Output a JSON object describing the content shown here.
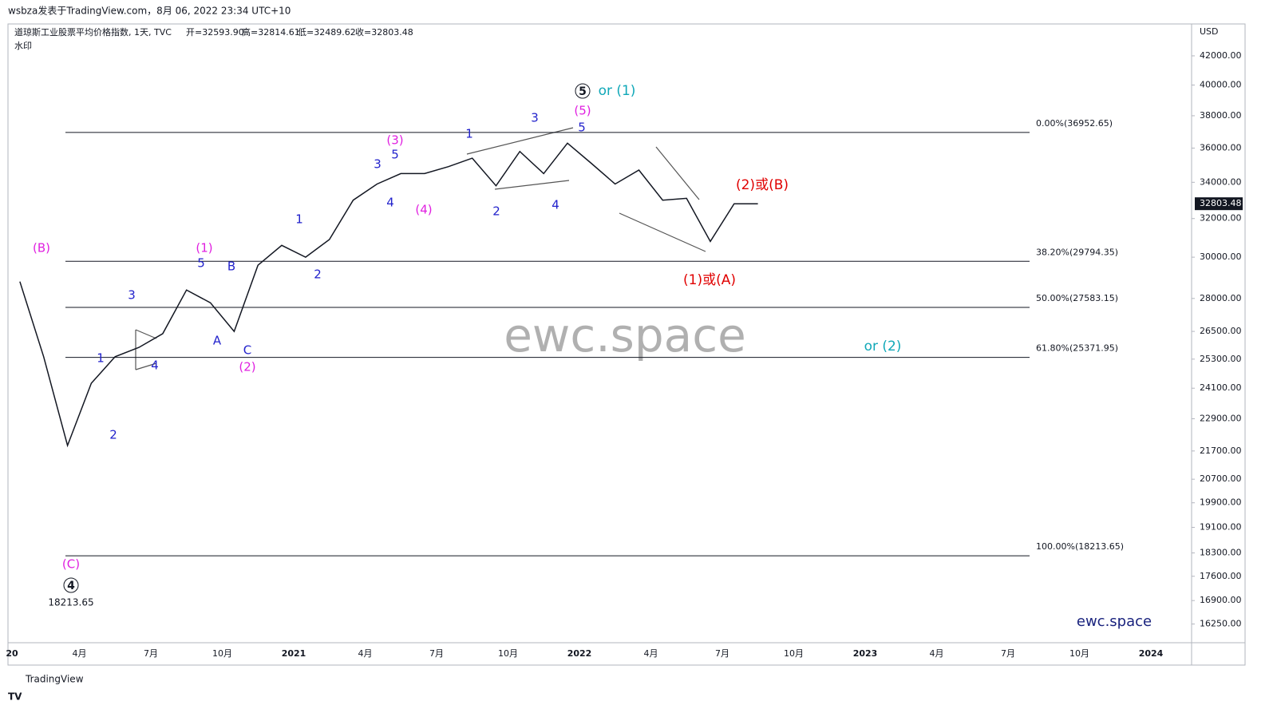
{
  "header": "wsbza发表于TradingView.com，8月 06, 2022 23:34 UTC+10",
  "footer": "TradingView",
  "chart_data": {
    "type": "line",
    "title": "道琼斯工业股票平均价格指数, 1天, TVC",
    "ohlc": [
      "开=32593.90",
      "高=32814.61",
      "低=32489.62",
      "收=32803.48"
    ],
    "subtitle": "水印",
    "currency": "USD",
    "watermark": "ewc.space",
    "brand": "ewc.space",
    "log_scale": true,
    "last_price": 32803.48,
    "x": [
      "2020-01",
      "2020-02",
      "2020-03",
      "2020-04",
      "2020-05",
      "2020-06",
      "2020-07",
      "2020-08",
      "2020-09",
      "2020-10",
      "2020-11",
      "2020-12",
      "2021-01",
      "2021-02",
      "2021-03",
      "2021-04",
      "2021-05",
      "2021-06",
      "2021-07",
      "2021-08",
      "2021-09",
      "2021-10",
      "2021-11",
      "2021-12",
      "2022-01",
      "2022-02",
      "2022-03",
      "2022-04",
      "2022-05",
      "2022-06",
      "2022-07",
      "2022-08"
    ],
    "series": [
      {
        "color": "#131722",
        "values": [
          28800,
          25400,
          21900,
          24300,
          25400,
          25800,
          26400,
          28400,
          27800,
          26500,
          29600,
          30600,
          30000,
          30900,
          33000,
          33900,
          34500,
          34500,
          34900,
          35400,
          33800,
          35800,
          34500,
          36300,
          35100,
          33900,
          34700,
          33000,
          33100,
          30800,
          32800,
          32803.48
        ]
      }
    ],
    "xtick_labels": [
      "20",
      "4月",
      "7月",
      "10月",
      "2021",
      "4月",
      "7月",
      "10月",
      "2022",
      "4月",
      "7月",
      "10月",
      "2023",
      "4月",
      "7月",
      "10月",
      "2024"
    ],
    "ylim": [
      15750,
      44300
    ],
    "yticks": [
      {
        "value": 42000,
        "label": "42000.00"
      },
      {
        "value": 40000,
        "label": "40000.00"
      },
      {
        "value": 38000,
        "label": "38000.00"
      },
      {
        "value": 36000,
        "label": "36000.00"
      },
      {
        "value": 34000,
        "label": "34000.00"
      },
      {
        "value": 32000,
        "label": "32000.00"
      },
      {
        "value": 30000,
        "label": "30000.00"
      },
      {
        "value": 28000,
        "label": "28000.00"
      },
      {
        "value": 26500,
        "label": "26500.00"
      },
      {
        "value": 25300,
        "label": "25300.00"
      },
      {
        "value": 24100,
        "label": "24100.00"
      },
      {
        "value": 22900,
        "label": "22900.00"
      },
      {
        "value": 21700,
        "label": "21700.00"
      },
      {
        "value": 20700,
        "label": "20700.00"
      },
      {
        "value": 19900,
        "label": "19900.00"
      },
      {
        "value": 19100,
        "label": "19100.00"
      },
      {
        "value": 18300,
        "label": "18300.00"
      },
      {
        "value": 17600,
        "label": "17600.00"
      },
      {
        "value": 16900,
        "label": "16900.00"
      },
      {
        "value": 16250,
        "label": "16250.00"
      }
    ],
    "fib_levels": [
      {
        "value": 36952.65,
        "label": "0.00%(36952.65)"
      },
      {
        "value": 29794.35,
        "label": "38.20%(29794.35)"
      },
      {
        "value": 27583.15,
        "label": "50.00%(27583.15)"
      },
      {
        "value": 25371.95,
        "label": "61.80%(25371.95)"
      },
      {
        "value": 18213.65,
        "label": "100.00%(18213.65)"
      }
    ],
    "annotation_groups": [
      {
        "color": "#2222cc",
        "labels": [
          "1",
          "3",
          "4",
          "2",
          "5",
          "B",
          "A",
          "C",
          "1",
          "2",
          "3",
          "5",
          "4",
          "1",
          "2",
          "3",
          "4",
          "5"
        ]
      },
      {
        "color": "#e020e0",
        "labels": [
          "(B)",
          "(1)",
          "(2)",
          "(3)",
          "(4)",
          "(5)",
          "(C)"
        ]
      },
      {
        "color": "#e00000",
        "labels": [
          "(2)或(B)",
          "(1)或(A)"
        ]
      },
      {
        "color": "#10a8b8",
        "labels": [
          "or (1)",
          "or (2)"
        ]
      },
      {
        "color": "#131722",
        "labels": [
          "5",
          "4",
          "18213.65"
        ]
      }
    ]
  }
}
